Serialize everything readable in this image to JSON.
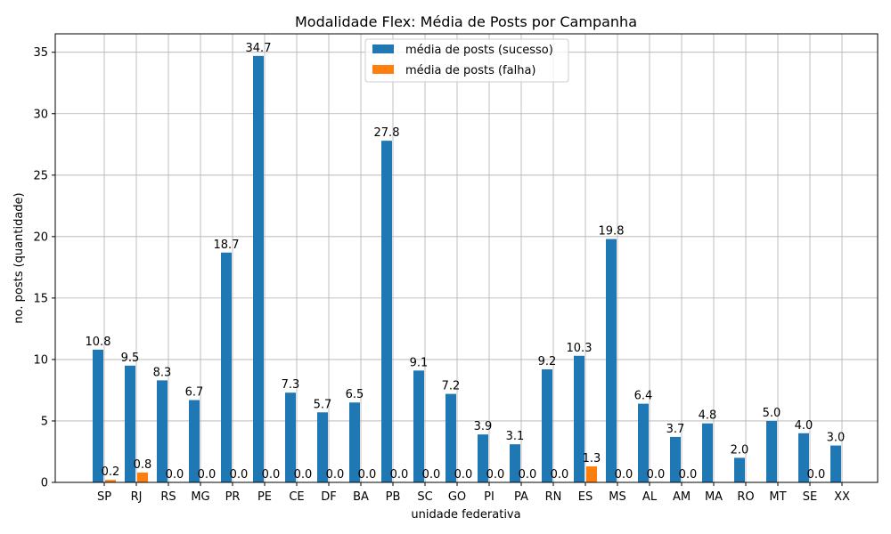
{
  "chart_data": {
    "type": "bar",
    "title": "Modalidade Flex: Média de Posts por Campanha",
    "xlabel": "unidade federativa",
    "ylabel": "no. posts (quantidade)",
    "ylim": [
      0,
      36.5
    ],
    "yticks": [
      "0",
      "5",
      "10",
      "15",
      "20",
      "25",
      "30",
      "35"
    ],
    "grid": true,
    "legend_position": "top-center",
    "categories": [
      "SP",
      "RJ",
      "RS",
      "MG",
      "PR",
      "PE",
      "CE",
      "DF",
      "BA",
      "PB",
      "SC",
      "GO",
      "PI",
      "PA",
      "RN",
      "ES",
      "MS",
      "AL",
      "AM",
      "MA",
      "RO",
      "MT",
      "SE",
      "XX"
    ],
    "series": [
      {
        "name": "média de posts (sucesso)",
        "color": "#1f77b4",
        "values": [
          10.8,
          9.5,
          8.3,
          6.7,
          18.7,
          34.7,
          7.3,
          5.7,
          6.5,
          27.8,
          9.1,
          7.2,
          3.9,
          3.1,
          9.2,
          10.3,
          19.8,
          6.4,
          3.7,
          4.8,
          2.0,
          5.0,
          4.0,
          3.0
        ],
        "labels": [
          "10.8",
          "9.5",
          "8.3",
          "6.7",
          "18.7",
          "34.7",
          "7.3",
          "5.7",
          "6.5",
          "27.8",
          "9.1",
          "7.2",
          "3.9",
          "3.1",
          "9.2",
          "10.3",
          "19.8",
          "6.4",
          "3.7",
          "4.8",
          "2.0",
          "5.0",
          "4.0",
          "3.0"
        ]
      },
      {
        "name": "média de posts (falha)",
        "color": "#ff7f0e",
        "values": [
          0.2,
          0.8,
          0.0,
          0.0,
          0.0,
          0.0,
          0.0,
          0.0,
          0.0,
          0.0,
          0.0,
          0.0,
          0.0,
          0.0,
          0.0,
          1.3,
          0.0,
          0.0,
          0.0,
          null,
          null,
          null,
          0.0,
          null
        ],
        "labels": [
          "0.2",
          "0.8",
          "0.0",
          "0.0",
          "0.0",
          "0.0",
          "0.0",
          "0.0",
          "0.0",
          "0.0",
          "0.0",
          "0.0",
          "0.0",
          "0.0",
          "0.0",
          "1.3",
          "0.0",
          "0.0",
          "0.0",
          null,
          null,
          null,
          "0.0",
          null
        ]
      }
    ]
  }
}
